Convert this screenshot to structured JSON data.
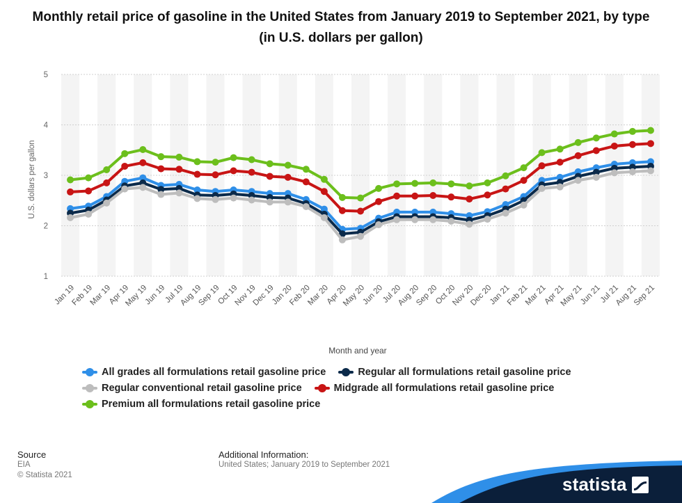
{
  "title": "Monthly retail price of gasoline in the United States from January 2019 to September 2021, by type (in U.S. dollars per gallon)",
  "chart_data": {
    "type": "line",
    "title": "Monthly retail price of gasoline in the United States from January 2019 to September 2021, by type (in U.S. dollars per gallon)",
    "xlabel": "Month and year",
    "ylabel": "U.S. dollars per gallon",
    "ylim": [
      1,
      5
    ],
    "yticks": [
      1,
      2,
      3,
      4,
      5
    ],
    "grid": "horizontal dashed",
    "legend_position": "bottom",
    "categories": [
      "Jan 19",
      "Feb 19",
      "Mar 19",
      "Apr 19",
      "May 19",
      "Jun 19",
      "Jul 19",
      "Aug 19",
      "Sep 19",
      "Oct 19",
      "Nov 19",
      "Dec 19",
      "Jan 20",
      "Feb 20",
      "Mar 20",
      "Apr 20",
      "May 20",
      "Jun 20",
      "Jul 20",
      "Aug 20",
      "Sep 20",
      "Oct 20",
      "Nov 20",
      "Dec 20",
      "Jan 21",
      "Feb 21",
      "Mar 21",
      "Apr 21",
      "May 21",
      "Jun 21",
      "Jul 21",
      "Aug 21",
      "Sep 21"
    ],
    "series": [
      {
        "name": "All grades all formulations retail gasoline price",
        "color": "#2f8fe8",
        "values": [
          2.34,
          2.39,
          2.58,
          2.88,
          2.95,
          2.8,
          2.82,
          2.71,
          2.68,
          2.71,
          2.68,
          2.64,
          2.64,
          2.52,
          2.33,
          1.93,
          1.95,
          2.15,
          2.27,
          2.27,
          2.27,
          2.24,
          2.2,
          2.28,
          2.42,
          2.58,
          2.9,
          2.96,
          3.07,
          3.15,
          3.22,
          3.25,
          3.27
        ]
      },
      {
        "name": "Regular all formulations retail gasoline price",
        "color": "#0b2a4a",
        "values": [
          2.25,
          2.31,
          2.51,
          2.79,
          2.85,
          2.72,
          2.74,
          2.61,
          2.6,
          2.63,
          2.6,
          2.56,
          2.55,
          2.44,
          2.23,
          1.84,
          1.87,
          2.08,
          2.18,
          2.18,
          2.18,
          2.16,
          2.11,
          2.2,
          2.33,
          2.5,
          2.81,
          2.86,
          2.98,
          3.06,
          3.14,
          3.16,
          3.18
        ]
      },
      {
        "name": "Regular conventional retail gasoline price",
        "color": "#bdbdbd",
        "values": [
          2.16,
          2.23,
          2.45,
          2.73,
          2.76,
          2.62,
          2.65,
          2.54,
          2.52,
          2.55,
          2.51,
          2.47,
          2.47,
          2.38,
          2.16,
          1.72,
          1.79,
          2.02,
          2.12,
          2.12,
          2.12,
          2.09,
          2.03,
          2.13,
          2.25,
          2.41,
          2.74,
          2.77,
          2.9,
          2.96,
          3.05,
          3.07,
          3.09
        ]
      },
      {
        "name": "Midgrade all formulations retail gasoline price",
        "color": "#c81515",
        "values": [
          2.67,
          2.69,
          2.85,
          3.18,
          3.25,
          3.13,
          3.12,
          3.02,
          3.01,
          3.09,
          3.06,
          2.98,
          2.96,
          2.87,
          2.68,
          2.3,
          2.29,
          2.48,
          2.59,
          2.59,
          2.6,
          2.57,
          2.53,
          2.61,
          2.73,
          2.9,
          3.19,
          3.26,
          3.39,
          3.49,
          3.58,
          3.61,
          3.63
        ]
      },
      {
        "name": "Premium all formulations retail gasoline price",
        "color": "#6cbf1c",
        "values": [
          2.91,
          2.95,
          3.11,
          3.43,
          3.51,
          3.37,
          3.36,
          3.27,
          3.26,
          3.35,
          3.31,
          3.23,
          3.2,
          3.12,
          2.92,
          2.56,
          2.55,
          2.74,
          2.83,
          2.84,
          2.85,
          2.83,
          2.79,
          2.85,
          2.99,
          3.15,
          3.45,
          3.52,
          3.65,
          3.74,
          3.82,
          3.87,
          3.89
        ]
      }
    ]
  },
  "legend": [
    {
      "label": "All grades all formulations retail gasoline price",
      "color": "#2f8fe8"
    },
    {
      "label": "Regular all formulations retail gasoline price",
      "color": "#0b2a4a"
    },
    {
      "label": "Regular conventional retail gasoline price",
      "color": "#bdbdbd"
    },
    {
      "label": "Midgrade all formulations retail gasoline price",
      "color": "#c81515"
    },
    {
      "label": "Premium all formulations retail gasoline price",
      "color": "#6cbf1c"
    }
  ],
  "footer": {
    "source_heading": "Source",
    "source_name": "EIA",
    "copyright": "© Statista 2021",
    "additional_heading": "Additional Information:",
    "additional_text": "United States; January 2019 to September 2021"
  },
  "brand": {
    "name": "statista",
    "icon": "statista-logo-icon",
    "band_color": "#0b1f3a",
    "accent_color": "#2f8fe8"
  }
}
